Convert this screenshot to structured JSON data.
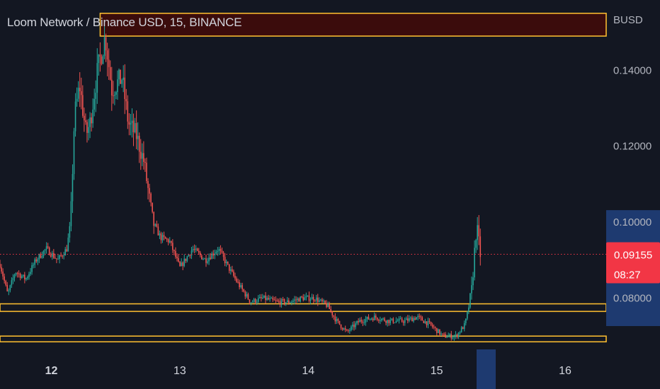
{
  "header": {
    "symbol_title": "Loom Network / Binance USD, 15, BINANCE"
  },
  "colors": {
    "background": "#131722",
    "up": "#26a69a",
    "down": "#ef5350",
    "zone_line": "#f5b830",
    "zone_fill": "#3b0c0c",
    "price_label_bg": "#f23645",
    "crosshair_label_bg": "#1e3a70",
    "axis_text": "#b2b5be"
  },
  "chart_data": {
    "type": "candlestick",
    "currency_label": "BUSD",
    "y_axis": {
      "ticks": [
        "0.14000",
        "0.12000",
        "0.10000",
        "0.08000"
      ],
      "values": [
        0.14,
        0.12,
        0.1,
        0.08
      ],
      "range": [
        0.0665,
        0.1585
      ]
    },
    "x_axis": {
      "ticks": [
        "12",
        "13",
        "14",
        "15",
        "16"
      ],
      "values": [
        12,
        13,
        14,
        15,
        16
      ],
      "range": [
        11.6,
        16.32
      ]
    },
    "crosshair_label": "0.10000",
    "current_price": {
      "value": 0.09155,
      "label": "0.09155",
      "countdown": "08:27"
    },
    "zones": [
      {
        "name": "resistance-zone",
        "from": 0.149,
        "to": 0.155,
        "filled": true
      },
      {
        "name": "support-level-upper",
        "from": 0.0765,
        "to": 0.0785,
        "filled": false
      },
      {
        "name": "support-level-lower",
        "from": 0.0685,
        "to": 0.07,
        "filled": false
      }
    ],
    "price_path": [
      [
        11.6,
        0.089
      ],
      [
        11.66,
        0.081
      ],
      [
        11.72,
        0.087
      ],
      [
        11.8,
        0.085
      ],
      [
        11.88,
        0.09
      ],
      [
        11.96,
        0.093
      ],
      [
        12.05,
        0.09
      ],
      [
        12.12,
        0.093
      ],
      [
        12.15,
        0.1
      ],
      [
        12.18,
        0.128
      ],
      [
        12.22,
        0.136
      ],
      [
        12.27,
        0.123
      ],
      [
        12.3,
        0.126
      ],
      [
        12.36,
        0.14
      ],
      [
        12.42,
        0.149
      ],
      [
        12.47,
        0.135
      ],
      [
        12.55,
        0.138
      ],
      [
        12.6,
        0.126
      ],
      [
        12.66,
        0.123
      ],
      [
        12.72,
        0.116
      ],
      [
        12.79,
        0.1
      ],
      [
        12.85,
        0.096
      ],
      [
        12.92,
        0.095
      ],
      [
        13.0,
        0.088
      ],
      [
        13.1,
        0.093
      ],
      [
        13.2,
        0.09
      ],
      [
        13.3,
        0.093
      ],
      [
        13.38,
        0.088
      ],
      [
        13.45,
        0.084
      ],
      [
        13.55,
        0.079
      ],
      [
        13.65,
        0.08
      ],
      [
        13.75,
        0.079
      ],
      [
        13.85,
        0.079
      ],
      [
        13.95,
        0.08
      ],
      [
        14.05,
        0.08
      ],
      [
        14.15,
        0.078
      ],
      [
        14.22,
        0.074
      ],
      [
        14.3,
        0.071
      ],
      [
        14.4,
        0.074
      ],
      [
        14.52,
        0.075
      ],
      [
        14.62,
        0.074
      ],
      [
        14.75,
        0.074
      ],
      [
        14.85,
        0.075
      ],
      [
        14.95,
        0.073
      ],
      [
        15.05,
        0.07
      ],
      [
        15.15,
        0.07
      ],
      [
        15.22,
        0.073
      ],
      [
        15.27,
        0.081
      ],
      [
        15.31,
        0.099
      ],
      [
        15.34,
        0.0916
      ]
    ]
  }
}
